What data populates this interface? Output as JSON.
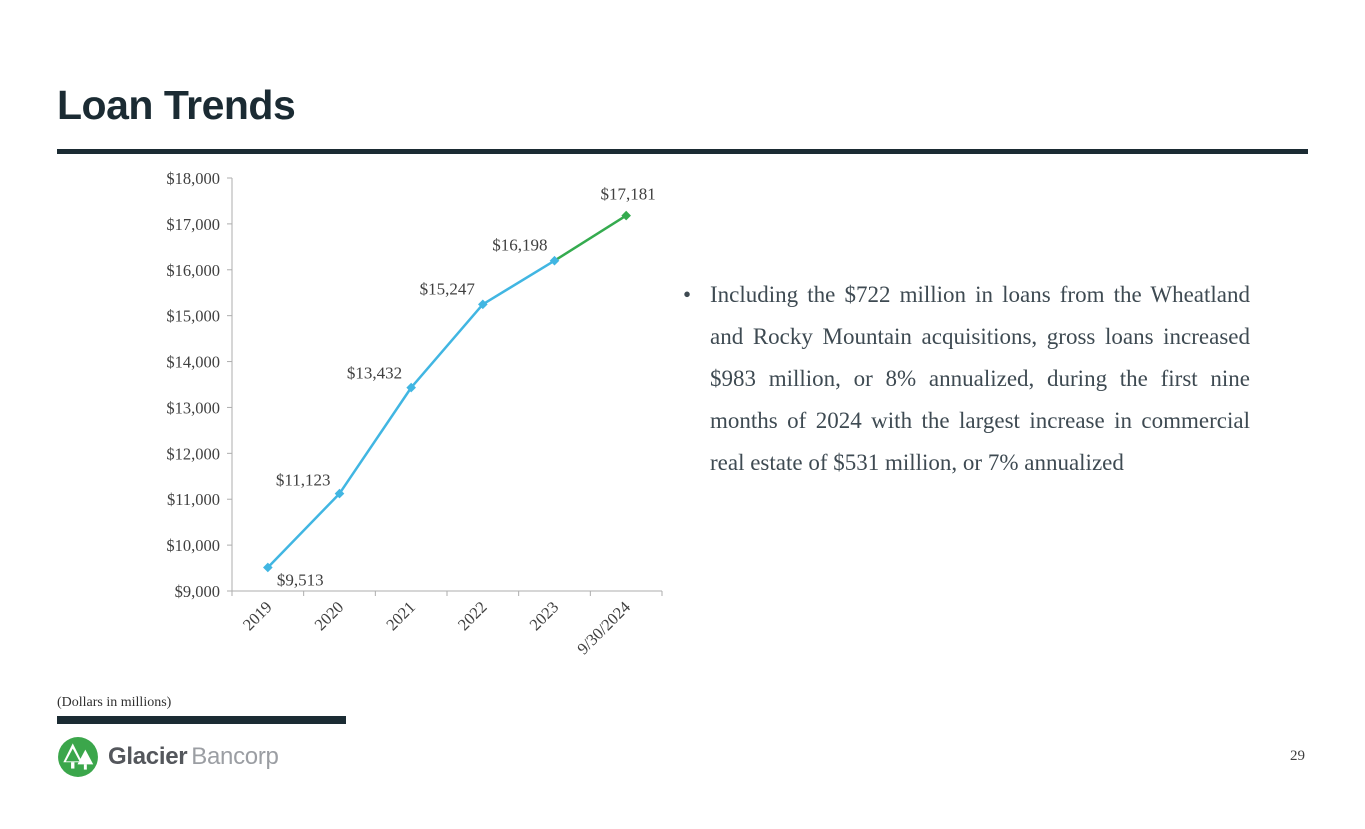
{
  "slide": {
    "title": "Loan Trends",
    "page_number": "29",
    "footnote": "(Dollars in millions)",
    "logo": {
      "brand_bold": "Glacier",
      "brand_light": "Bancorp"
    }
  },
  "bullet": {
    "glyph": "•",
    "text": "Including the $722 million in loans from the Wheatland and Rocky Mountain acquisitions, gross loans increased $983 million, or 8% annualized, during the first nine months of 2024 with the largest increase in commercial real estate of $531 million, or 7% annualized"
  },
  "colors": {
    "heading_dark": "#1B2B33",
    "body_text": "#3E4A52",
    "logo_green": "#3BA64B"
  },
  "chart_data": {
    "type": "line",
    "title": "",
    "xlabel": "",
    "ylabel": "",
    "categories": [
      "2019",
      "2020",
      "2021",
      "2022",
      "2023",
      "9/30/2024"
    ],
    "values": [
      9513,
      11123,
      13432,
      15247,
      16198,
      17181
    ],
    "data_labels": [
      "$9,513",
      "$11,123",
      "$13,432",
      "$15,247",
      "$16,198",
      "$17,181"
    ],
    "ylim": [
      9000,
      18000
    ],
    "y_tick_step": 1000,
    "y_tick_labels": [
      "$9,000",
      "$10,000",
      "$11,000",
      "$12,000",
      "$13,000",
      "$14,000",
      "$15,000",
      "$16,000",
      "$17,000",
      "$18,000"
    ],
    "grid": false,
    "legend": false,
    "line_color": "#41B6E2",
    "final_segment_color": "#35AB4F",
    "axis_color": "#ADADAD",
    "label_color": "#404040",
    "units_note": "(Dollars in millions)"
  }
}
